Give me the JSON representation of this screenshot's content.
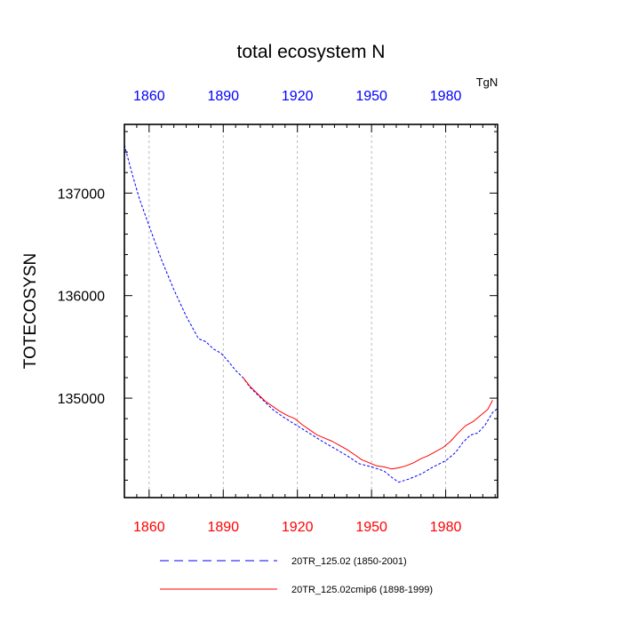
{
  "chart_data": {
    "type": "line",
    "title": "total ecosystem N",
    "ylabel": "TOTECOSYSN",
    "units_label": "TgN",
    "xlim": [
      1850,
      2001
    ],
    "ylim": [
      134030,
      137670
    ],
    "x_ticks": [
      1860,
      1890,
      1920,
      1950,
      1980
    ],
    "x_minor_step": 5,
    "y_ticks": [
      135000,
      136000,
      137000
    ],
    "y_tick_labels": [
      "135000",
      "136000",
      "137000"
    ],
    "y_minor_step": 200,
    "grid": "vertical dashed at major x ticks",
    "top_axis_color": "#0000ff",
    "bottom_axis_color": "#ff0000",
    "legend_position": "bottom",
    "series": [
      {
        "name": "20TR_125.02 (1850-2001)",
        "color": "#0000ff",
        "style": "dashed",
        "x": [
          1850,
          1853,
          1856,
          1860,
          1865,
          1870,
          1875,
          1880,
          1883,
          1886,
          1889,
          1892,
          1895,
          1898,
          1901,
          1904,
          1907,
          1910,
          1914,
          1918,
          1922,
          1926,
          1930,
          1935,
          1940,
          1945,
          1950,
          1955,
          1958,
          1961,
          1965,
          1970,
          1975,
          1980,
          1984,
          1987,
          1990,
          1993,
          1996,
          1999,
          2001
        ],
        "y": [
          137470,
          137200,
          136950,
          136680,
          136350,
          136060,
          135800,
          135580,
          135550,
          135480,
          135440,
          135360,
          135270,
          135200,
          135100,
          135030,
          134960,
          134890,
          134820,
          134760,
          134700,
          134640,
          134580,
          134510,
          134440,
          134360,
          134330,
          134290,
          134230,
          134180,
          134210,
          134260,
          134330,
          134390,
          134470,
          134570,
          134640,
          134660,
          134740,
          134860,
          134900
        ]
      },
      {
        "name": "20TR_125.02cmip6 (1898-1999)",
        "color": "#ff0000",
        "style": "solid",
        "x": [
          1898,
          1901,
          1904,
          1907,
          1910,
          1913,
          1916,
          1919,
          1922,
          1925,
          1928,
          1931,
          1934,
          1937,
          1940,
          1943,
          1946,
          1949,
          1952,
          1955,
          1958,
          1961,
          1964,
          1967,
          1970,
          1973,
          1976,
          1979,
          1982,
          1985,
          1988,
          1991,
          1994,
          1997,
          1999
        ],
        "y": [
          135200,
          135110,
          135040,
          134970,
          134920,
          134870,
          134830,
          134800,
          134740,
          134690,
          134640,
          134610,
          134580,
          134540,
          134500,
          134450,
          134400,
          134370,
          134340,
          134330,
          134310,
          134320,
          134340,
          134370,
          134410,
          134440,
          134480,
          134520,
          134580,
          134660,
          134730,
          134770,
          134830,
          134890,
          134980
        ]
      }
    ]
  }
}
